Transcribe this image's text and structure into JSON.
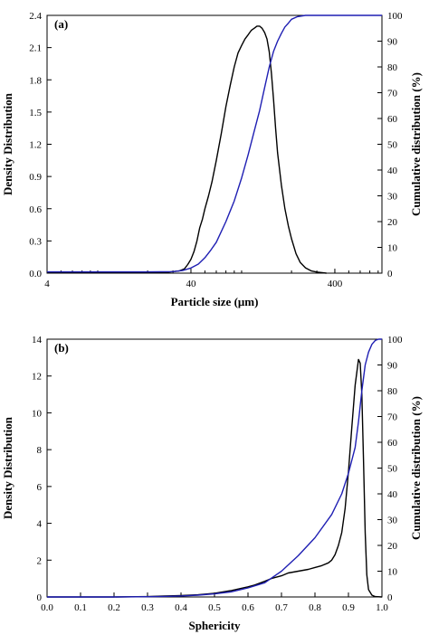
{
  "chart_data": [
    {
      "type": "line",
      "panel_label": "(a)",
      "xlabel": "Particle size (μm)",
      "ylabel": "Density Distribution",
      "y2label": "Cumulative distribution (%)",
      "xscale": "log",
      "xlim": [
        4,
        850
      ],
      "ylim": [
        0,
        2.4
      ],
      "y2lim": [
        0,
        100
      ],
      "xticks": [
        4,
        40,
        400
      ],
      "xtick_labels": [
        "4",
        "40",
        "400"
      ],
      "yticks": [
        0,
        0.3,
        0.6,
        0.9,
        1.2,
        1.5,
        1.8,
        2.1,
        2.4
      ],
      "ytick_labels": [
        "0.0",
        "0.3",
        "0.6",
        "0.9",
        "1.2",
        "1.5",
        "1.8",
        "2.1",
        "2.4"
      ],
      "y2ticks": [
        0,
        10,
        20,
        30,
        40,
        50,
        60,
        70,
        80,
        90,
        100
      ],
      "y2tick_labels": [
        "0",
        "10",
        "20",
        "30",
        "40",
        "50",
        "60",
        "70",
        "80",
        "90",
        "100"
      ],
      "grid": false,
      "series": [
        {
          "key": "density",
          "axis": "left",
          "color": "#000000",
          "x": [
            4,
            20,
            28,
            33,
            36,
            38,
            40,
            42,
            44,
            46,
            48,
            50,
            53,
            56,
            60,
            65,
            70,
            75,
            80,
            85,
            90,
            95,
            100,
            105,
            110,
            115,
            120,
            125,
            130,
            135,
            140,
            145,
            150,
            155,
            160,
            170,
            180,
            190,
            200,
            215,
            230,
            250,
            275,
            300,
            350
          ],
          "y": [
            0.01,
            0.01,
            0.01,
            0.02,
            0.04,
            0.08,
            0.13,
            0.2,
            0.3,
            0.42,
            0.5,
            0.6,
            0.72,
            0.85,
            1.05,
            1.3,
            1.55,
            1.75,
            1.92,
            2.05,
            2.12,
            2.18,
            2.22,
            2.26,
            2.28,
            2.3,
            2.3,
            2.28,
            2.24,
            2.18,
            2.06,
            1.86,
            1.62,
            1.35,
            1.12,
            0.82,
            0.6,
            0.44,
            0.32,
            0.18,
            0.1,
            0.05,
            0.02,
            0.01,
            0.0
          ]
        },
        {
          "key": "cumulative",
          "axis": "right",
          "color": "#1f1fb3",
          "x": [
            4,
            20,
            30,
            35,
            40,
            45,
            50,
            55,
            60,
            70,
            80,
            90,
            100,
            110,
            120,
            130,
            140,
            150,
            160,
            170,
            180,
            190,
            200,
            220,
            250,
            280,
            300,
            850
          ],
          "y": [
            0.5,
            0.5,
            0.6,
            1,
            2,
            3.5,
            6,
            9,
            12,
            20,
            28,
            37,
            46,
            55,
            63,
            72,
            80,
            86,
            90,
            93,
            95.5,
            97,
            98.5,
            99.5,
            100,
            100,
            100,
            100
          ]
        }
      ]
    },
    {
      "type": "line",
      "panel_label": "(b)",
      "xlabel": "Sphericity",
      "ylabel": "Density Distribution",
      "y2label": "Cumulative distribution (%)",
      "xscale": "linear",
      "xlim": [
        0,
        1.0
      ],
      "ylim": [
        0,
        14
      ],
      "y2lim": [
        0,
        100
      ],
      "xticks": [
        0,
        0.1,
        0.2,
        0.3,
        0.4,
        0.5,
        0.6,
        0.7,
        0.8,
        0.9,
        1.0
      ],
      "xtick_labels": [
        "0.0",
        "0.1",
        "0.2",
        "0.3",
        "0.4",
        "0.5",
        "0.6",
        "0.7",
        "0.8",
        "0.9",
        "1.0"
      ],
      "yticks": [
        0,
        2,
        4,
        6,
        8,
        10,
        12,
        14
      ],
      "ytick_labels": [
        "0",
        "2",
        "4",
        "6",
        "8",
        "10",
        "12",
        "14"
      ],
      "y2ticks": [
        0,
        10,
        20,
        30,
        40,
        50,
        60,
        70,
        80,
        90,
        100
      ],
      "y2tick_labels": [
        "0",
        "10",
        "20",
        "30",
        "40",
        "50",
        "60",
        "70",
        "80",
        "90",
        "100"
      ],
      "grid": false,
      "series": [
        {
          "key": "density",
          "axis": "left",
          "color": "#000000",
          "x": [
            0,
            0.2,
            0.3,
            0.35,
            0.4,
            0.45,
            0.5,
            0.55,
            0.6,
            0.62,
            0.65,
            0.67,
            0.7,
            0.72,
            0.75,
            0.78,
            0.8,
            0.82,
            0.84,
            0.85,
            0.86,
            0.87,
            0.88,
            0.89,
            0.9,
            0.91,
            0.92,
            0.93,
            0.935,
            0.94,
            0.945,
            0.95,
            0.955,
            0.96,
            0.97,
            0.98,
            1.0
          ],
          "y": [
            0,
            0,
            0.02,
            0.05,
            0.08,
            0.12,
            0.2,
            0.35,
            0.55,
            0.65,
            0.85,
            1.0,
            1.15,
            1.3,
            1.4,
            1.5,
            1.6,
            1.7,
            1.85,
            2.0,
            2.3,
            2.8,
            3.5,
            4.8,
            6.8,
            9.2,
            11.5,
            12.9,
            12.7,
            11.0,
            7.5,
            3.5,
            1.2,
            0.4,
            0.1,
            0.02,
            0
          ]
        },
        {
          "key": "cumulative",
          "axis": "right",
          "color": "#1f1fb3",
          "x": [
            0,
            0.2,
            0.3,
            0.35,
            0.4,
            0.45,
            0.5,
            0.55,
            0.6,
            0.65,
            0.7,
            0.75,
            0.8,
            0.85,
            0.88,
            0.9,
            0.92,
            0.93,
            0.94,
            0.95,
            0.96,
            0.97,
            0.98,
            0.99,
            1.0
          ],
          "y": [
            0,
            0,
            0.1,
            0.2,
            0.4,
            0.7,
            1.2,
            2,
            3.5,
            5.5,
            10,
            16,
            23,
            32,
            40,
            48,
            58,
            68,
            80,
            90,
            95,
            98,
            99.5,
            100,
            100
          ]
        }
      ]
    }
  ]
}
